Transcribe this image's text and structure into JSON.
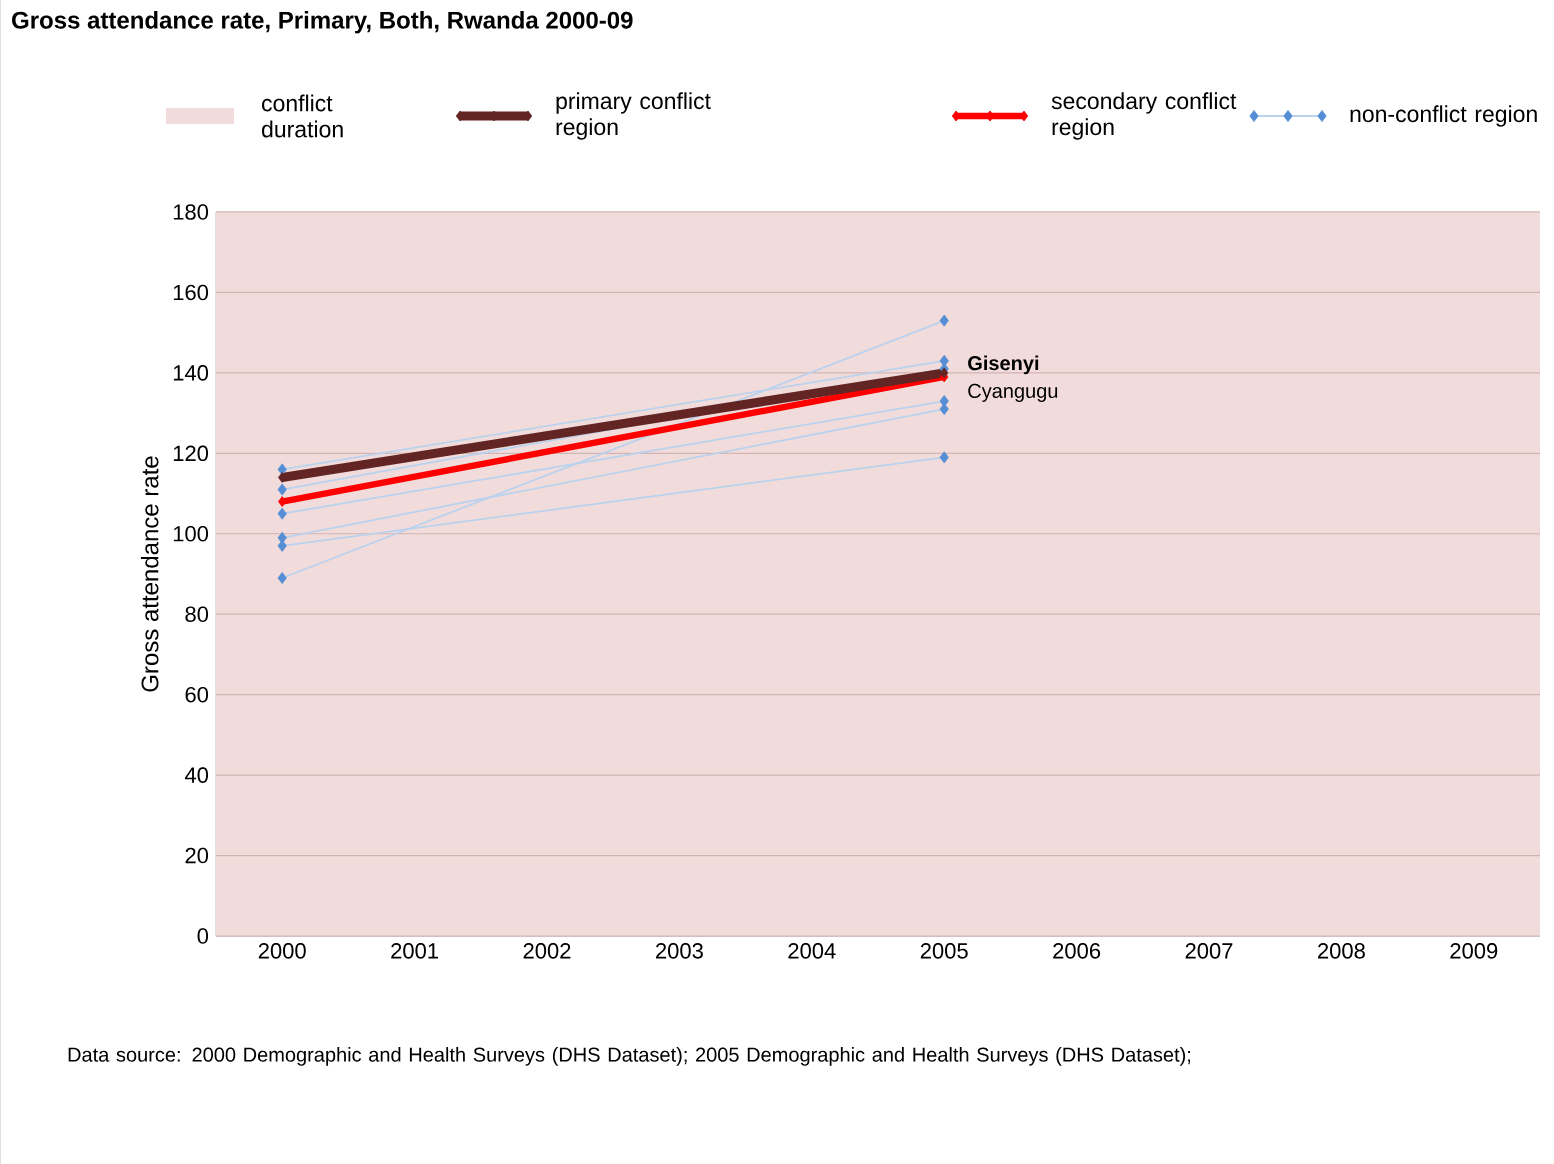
{
  "chart_data": {
    "type": "line",
    "title": "Gross attendance rate, Primary, Both, Rwanda 2000-09",
    "ylabel": "Gross attendance rate",
    "x": [
      2000,
      2005
    ],
    "xlim": [
      1999.5,
      2009.5
    ],
    "xticks": [
      2000,
      2001,
      2002,
      2003,
      2004,
      2005,
      2006,
      2007,
      2008,
      2009
    ],
    "ylim": [
      0,
      180
    ],
    "yticks": [
      0,
      20,
      40,
      60,
      80,
      100,
      120,
      140,
      160,
      180
    ],
    "grid": "y",
    "legend": "top",
    "marker": "diamond",
    "bands": [
      {
        "axis": "x",
        "from": 1999.5,
        "to": 2009.5,
        "label": "conflict duration",
        "color": "#f2dcdb"
      }
    ],
    "series": [
      {
        "name": "primary conflict region",
        "color": "#632523",
        "values": [
          114,
          140
        ]
      },
      {
        "name": "secondary conflict region",
        "color": "#ff0000",
        "values": [
          108,
          139
        ]
      },
      {
        "name": "non-conflict region",
        "color": "#558ed5",
        "values": [
          89,
          153
        ]
      },
      {
        "color": "#558ed5",
        "values": [
          97,
          119
        ]
      },
      {
        "color": "#558ed5",
        "values": [
          99,
          131
        ]
      },
      {
        "color": "#558ed5",
        "values": [
          105,
          133
        ]
      },
      {
        "color": "#558ed5",
        "values": [
          111,
          141
        ]
      },
      {
        "color": "#558ed5",
        "values": [
          116,
          143
        ]
      }
    ],
    "annotations": [
      {
        "text": "Gisenyi",
        "x": 2005,
        "y": 140
      },
      {
        "text": "Cyangugu",
        "x": 2005,
        "y": 139
      },
      "Data source: 2000 Demographic and Health Surveys (DHS Dataset); 2005 Demographic and Health Surveys (DHS Dataset);"
    ]
  }
}
